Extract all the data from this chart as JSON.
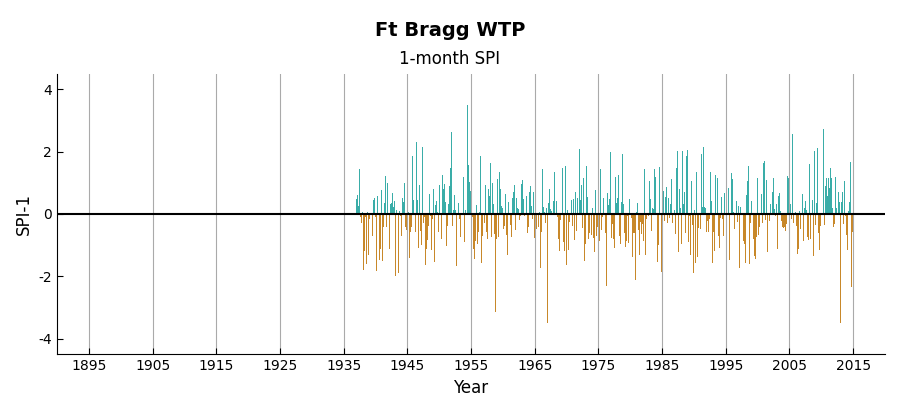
{
  "title": "Ft Bragg WTP",
  "subtitle": "1-month SPI",
  "xlabel": "Year",
  "ylabel": "SPI-1",
  "xlim": [
    1890,
    2020
  ],
  "ylim": [
    -4.5,
    4.5
  ],
  "yticks": [
    -4,
    -2,
    0,
    2,
    4
  ],
  "xticks": [
    1895,
    1905,
    1915,
    1925,
    1935,
    1945,
    1955,
    1965,
    1975,
    1985,
    1995,
    2005,
    2015
  ],
  "data_start_year": 1937,
  "data_end_year": 2015,
  "n_months": 937,
  "positive_color": "#3aada8",
  "negative_color": "#c8882a",
  "background_color": "#ffffff",
  "grid_color": "#aaaaaa",
  "title_fontsize": 14,
  "subtitle_fontsize": 12,
  "axis_label_fontsize": 12,
  "tick_fontsize": 10,
  "random_seed": 42
}
